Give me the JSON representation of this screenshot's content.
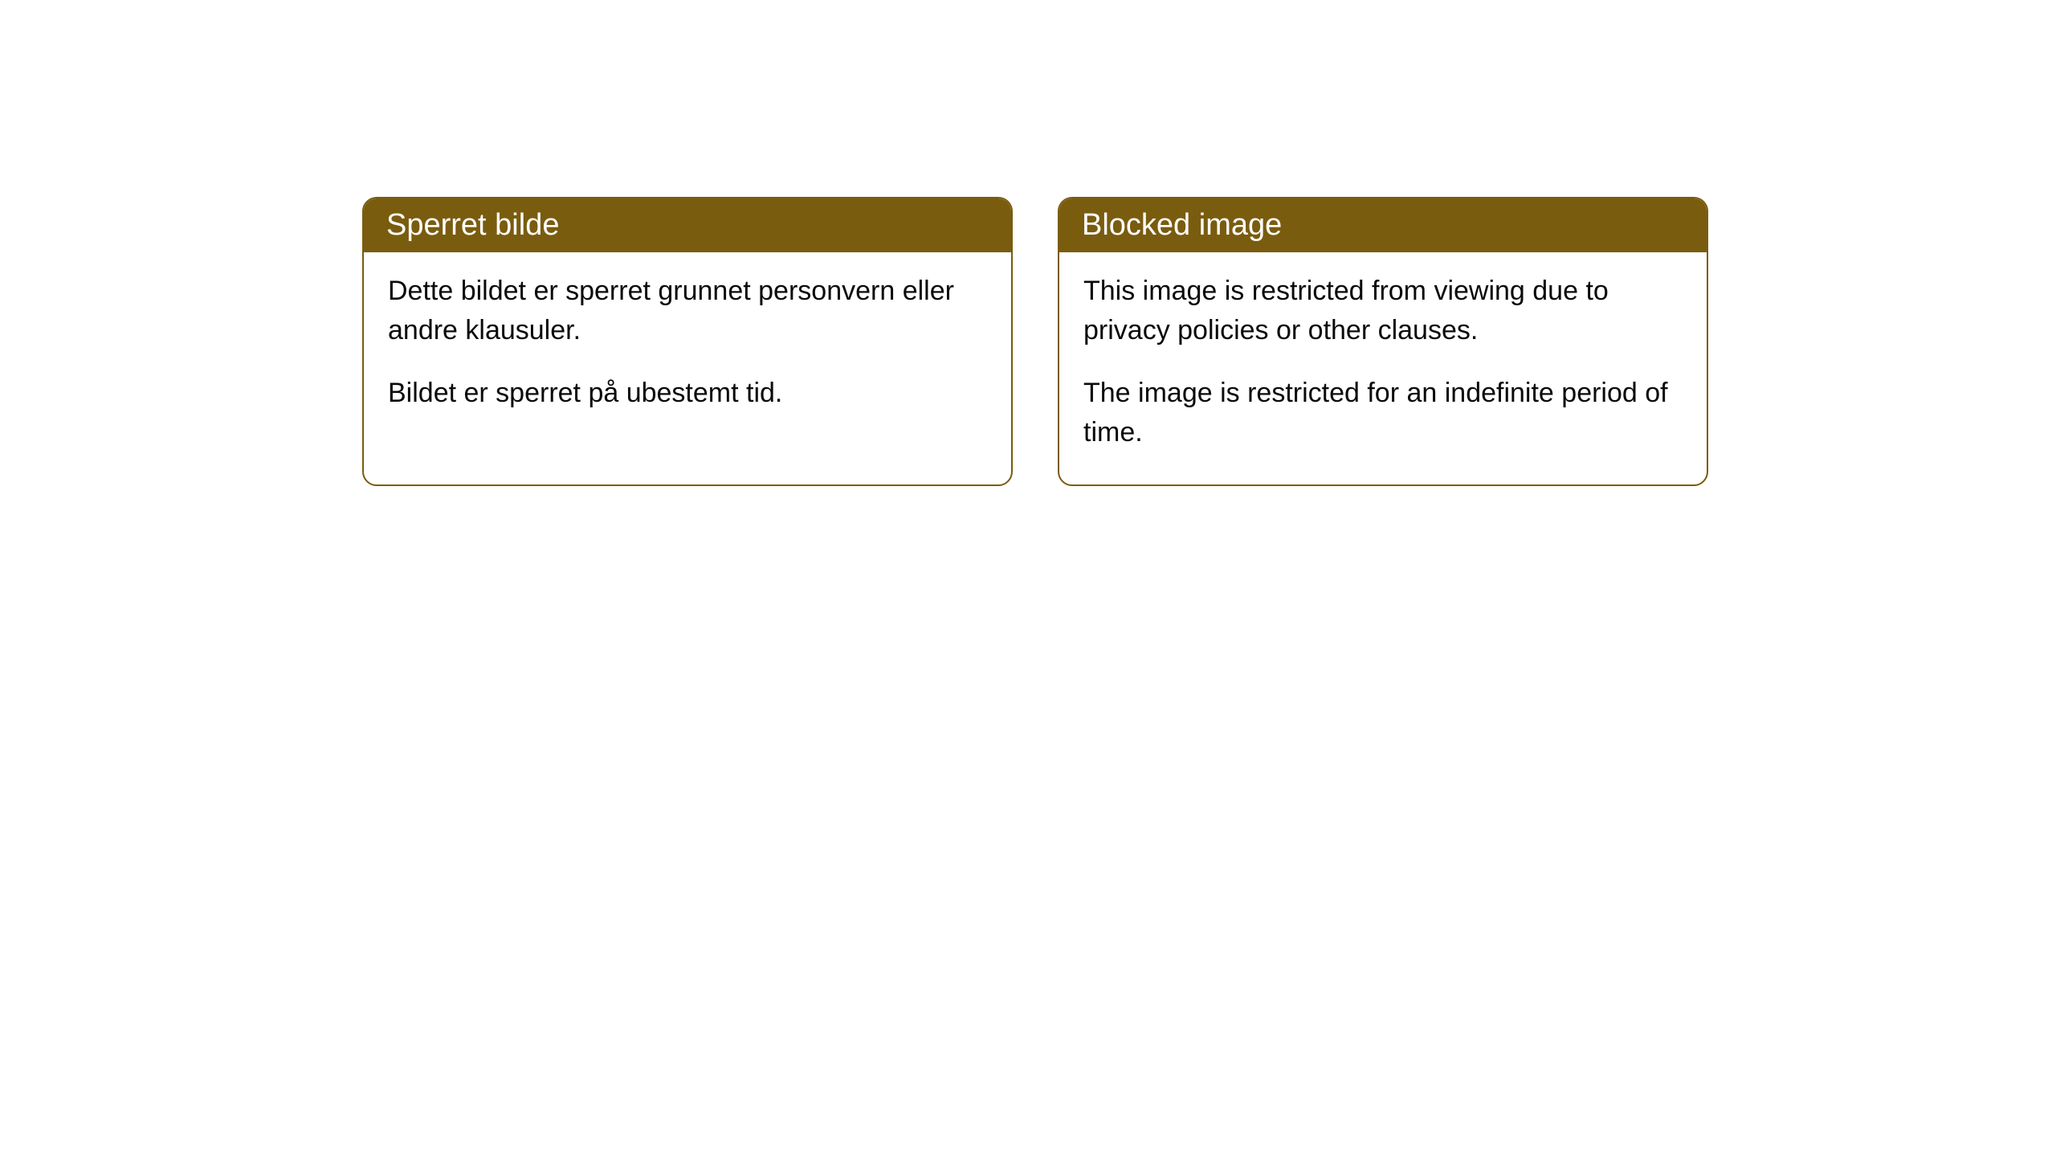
{
  "cards": [
    {
      "title": "Sperret bilde",
      "paragraph1": "Dette bildet er sperret grunnet personvern eller andre klausuler.",
      "paragraph2": "Bildet er sperret på ubestemt tid."
    },
    {
      "title": "Blocked image",
      "paragraph1": "This image is restricted from viewing due to privacy policies or other clauses.",
      "paragraph2": "The image is restricted for an indefinite period of time."
    }
  ],
  "style": {
    "header_bg_color": "#7a5c0f",
    "header_text_color": "#ffffff",
    "border_color": "#7a5c0f",
    "body_text_color": "#0a0a0a",
    "card_bg_color": "#ffffff",
    "page_bg_color": "#ffffff",
    "border_radius": 18,
    "title_fontsize": 38,
    "body_fontsize": 34
  }
}
